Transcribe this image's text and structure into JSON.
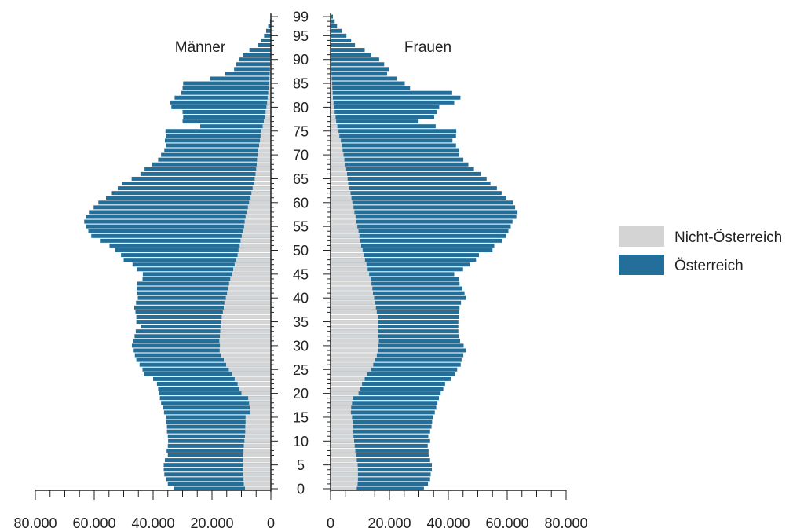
{
  "chart_data": {
    "type": "bar",
    "orientation": "horizontal",
    "layout": "population-pyramid",
    "stacked": true,
    "x_unit": "persons",
    "y_label": "age",
    "left_panel_label": "Männer",
    "right_panel_label": "Frauen",
    "series": [
      {
        "name": "Nicht-Österreich",
        "color": "#d4d4d4"
      },
      {
        "name": "Österreich",
        "color": "#236f9a"
      }
    ],
    "ages": [
      0,
      1,
      2,
      3,
      4,
      5,
      6,
      7,
      8,
      9,
      10,
      11,
      12,
      13,
      14,
      15,
      16,
      17,
      18,
      19,
      20,
      21,
      22,
      23,
      24,
      25,
      26,
      27,
      28,
      29,
      30,
      31,
      32,
      33,
      34,
      35,
      36,
      37,
      38,
      39,
      40,
      41,
      42,
      43,
      44,
      45,
      46,
      47,
      48,
      49,
      50,
      51,
      52,
      53,
      54,
      55,
      56,
      57,
      58,
      59,
      60,
      61,
      62,
      63,
      64,
      65,
      66,
      67,
      68,
      69,
      70,
      71,
      72,
      73,
      74,
      75,
      76,
      77,
      78,
      79,
      80,
      81,
      82,
      83,
      84,
      85,
      86,
      87,
      88,
      89,
      90,
      91,
      92,
      93,
      94,
      95,
      96,
      97,
      98,
      99
    ],
    "men_non_austrian": [
      8800,
      9200,
      9300,
      9500,
      9500,
      9600,
      9600,
      9400,
      9300,
      9200,
      9000,
      8800,
      8700,
      8700,
      8600,
      8600,
      7000,
      7200,
      7400,
      7700,
      10000,
      10800,
      11300,
      12300,
      13200,
      14300,
      15200,
      16000,
      16800,
      17400,
      17300,
      17500,
      17300,
      17200,
      17100,
      17000,
      16700,
      16300,
      16000,
      15800,
      15300,
      14900,
      14600,
      14200,
      13800,
      13300,
      12800,
      12300,
      11800,
      11300,
      11000,
      10600,
      10300,
      9900,
      9500,
      9100,
      8900,
      8600,
      8200,
      7800,
      7400,
      6900,
      6600,
      6200,
      5800,
      5500,
      5200,
      5000,
      4800,
      4700,
      4500,
      4300,
      4000,
      3700,
      3500,
      3300,
      2800,
      2400,
      2100,
      1800,
      1500,
      1300,
      1100,
      900,
      800,
      600,
      500,
      400,
      300,
      200,
      200,
      150,
      100,
      100,
      80,
      60,
      40,
      30,
      20,
      10
    ],
    "men_total": [
      33000,
      35000,
      35600,
      36200,
      36400,
      36400,
      36000,
      35000,
      35400,
      35000,
      34900,
      35000,
      35300,
      35300,
      35600,
      35700,
      36300,
      36800,
      37300,
      37700,
      38000,
      38300,
      38700,
      40000,
      43100,
      43600,
      44600,
      45700,
      46200,
      46600,
      47200,
      46700,
      46300,
      45900,
      44200,
      45700,
      45700,
      46000,
      46400,
      45800,
      45200,
      45400,
      45600,
      45400,
      43600,
      43500,
      45500,
      47000,
      50000,
      50900,
      52900,
      54800,
      57800,
      61000,
      62000,
      62800,
      63400,
      62800,
      61800,
      60200,
      58600,
      56000,
      54000,
      52000,
      50600,
      47300,
      44300,
      42900,
      40500,
      38300,
      37300,
      36200,
      35700,
      36000,
      35700,
      35800,
      24000,
      30000,
      29800,
      30000,
      33800,
      34200,
      32700,
      30400,
      30000,
      29800,
      20700,
      15500,
      12500,
      11800,
      10800,
      9600,
      7300,
      4500,
      3300,
      2300,
      1600,
      900,
      300,
      100
    ],
    "women_non_austrian": [
      8900,
      9200,
      9300,
      9300,
      9300,
      9200,
      8900,
      8700,
      8400,
      8200,
      8000,
      7800,
      7700,
      7600,
      7500,
      7300,
      6900,
      7000,
      7300,
      7500,
      9500,
      10100,
      10700,
      11600,
      12400,
      13800,
      14500,
      15200,
      15700,
      16000,
      16200,
      16400,
      16200,
      16200,
      16200,
      16200,
      16000,
      15700,
      15400,
      15100,
      14800,
      14400,
      14200,
      13900,
      13600,
      13100,
      12600,
      12200,
      11700,
      11300,
      10900,
      10400,
      10100,
      9800,
      9500,
      9100,
      8800,
      8500,
      8100,
      7800,
      7400,
      7100,
      6800,
      6400,
      6000,
      5800,
      5600,
      5300,
      5000,
      4700,
      4400,
      4100,
      3900,
      3500,
      3000,
      2700,
      2300,
      1900,
      1700,
      1400,
      1200,
      1000,
      800,
      700,
      600,
      500,
      400,
      300,
      200,
      200,
      150,
      100,
      80,
      60,
      40,
      30,
      20,
      10,
      10,
      10
    ],
    "women_total": [
      31700,
      33100,
      33800,
      34000,
      34400,
      34400,
      33800,
      33300,
      33300,
      33000,
      33800,
      33200,
      33800,
      34300,
      34500,
      34800,
      35400,
      35900,
      36300,
      36800,
      37400,
      38300,
      38900,
      40900,
      42400,
      43000,
      44200,
      44500,
      45100,
      45900,
      45200,
      44000,
      43600,
      43400,
      43400,
      43400,
      43700,
      43700,
      43800,
      44300,
      46000,
      45500,
      44800,
      43800,
      43600,
      42000,
      45000,
      47300,
      49400,
      50400,
      55000,
      55600,
      58200,
      59600,
      60400,
      61200,
      61800,
      63100,
      63500,
      62700,
      62000,
      59700,
      58100,
      56500,
      54300,
      53000,
      51000,
      48700,
      46800,
      45100,
      43700,
      43700,
      42600,
      41400,
      42600,
      42700,
      35700,
      29900,
      35200,
      36100,
      36900,
      42000,
      44100,
      41300,
      27000,
      25200,
      22400,
      19200,
      20000,
      18200,
      16500,
      13800,
      11600,
      8300,
      7000,
      5400,
      3800,
      2200,
      1400,
      800
    ],
    "x_ticks_left": [
      "80.000",
      "60.000",
      "40.000",
      "20.000",
      "0"
    ],
    "x_ticks_right": [
      "0",
      "20.000",
      "40.000",
      "60.000",
      "80.000"
    ],
    "x_tick_values": [
      80000,
      60000,
      40000,
      20000,
      0
    ],
    "y_tick_labels": [
      "0",
      "5",
      "10",
      "15",
      "20",
      "25",
      "30",
      "35",
      "40",
      "45",
      "50",
      "55",
      "60",
      "65",
      "70",
      "75",
      "80",
      "85",
      "90",
      "95",
      "99"
    ],
    "x_max": 80000,
    "legend_position": "right"
  }
}
